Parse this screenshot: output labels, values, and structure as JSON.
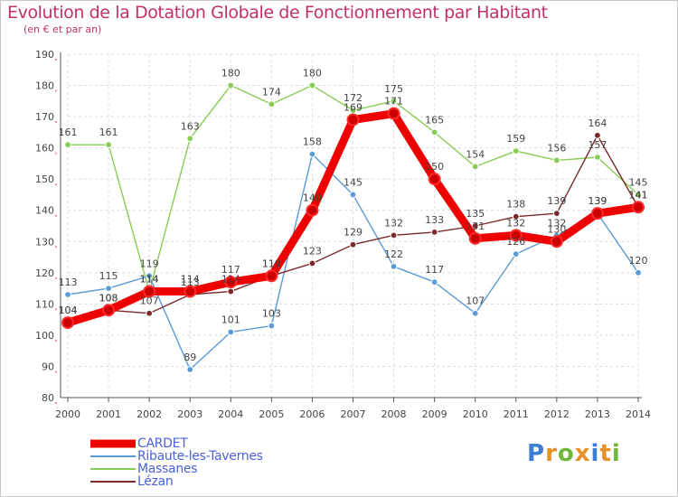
{
  "title": "Evolution de la Dotation Globale de Fonctionnement par Habitant",
  "subtitle": "(en € et par an)",
  "logo": {
    "text": "Proxiti",
    "letters": [
      "P",
      "r",
      "o",
      "x",
      "i",
      "t",
      "i"
    ],
    "letter_colors": [
      "#3a7fd5",
      "#e8912a",
      "#6fb83a",
      "#e8912a",
      "#3a7fd5",
      "#e8912a",
      "#6fb83a"
    ]
  },
  "chart_data": {
    "type": "line",
    "title": "Evolution de la Dotation Globale de Fonctionnement par Habitant",
    "subtitle": "(en € et par an)",
    "xlabel": "",
    "ylabel": "",
    "ylim": [
      80,
      190
    ],
    "yticks": [
      80,
      90,
      100,
      110,
      120,
      130,
      140,
      150,
      160,
      170,
      180,
      190
    ],
    "grid": true,
    "legend_position": "bottom-left",
    "categories": [
      "2000",
      "2001",
      "2002",
      "2003",
      "2004",
      "2005",
      "2006",
      "2007",
      "2008",
      "2009",
      "2010",
      "2011",
      "2012",
      "2013",
      "2014"
    ],
    "series": [
      {
        "name": "Massanes",
        "color": "#88cc55",
        "values": [
          161,
          161,
          114,
          163,
          180,
          174,
          180,
          172,
          175,
          165,
          154,
          159,
          156,
          157,
          145
        ]
      },
      {
        "name": "Ribaute-les-Tavernes",
        "color": "#5b9bd5",
        "values": [
          113,
          115,
          119,
          89,
          101,
          103,
          158,
          145,
          122,
          117,
          107,
          126,
          132,
          139,
          120
        ]
      },
      {
        "name": "Lézan",
        "color": "#7a2a2a",
        "values": [
          104,
          108,
          107,
          113,
          114,
          119,
          123,
          129,
          132,
          133,
          135,
          138,
          139,
          164,
          141
        ]
      },
      {
        "name": "CARDET",
        "color": "#ee0000",
        "values": [
          104,
          108,
          114,
          114,
          117,
          119,
          140,
          169,
          171,
          150,
          131,
          132,
          130,
          139,
          141
        ]
      }
    ],
    "legend": [
      "CARDET",
      "Ribaute-les-Tavernes",
      "Massanes",
      "Lézan"
    ]
  }
}
